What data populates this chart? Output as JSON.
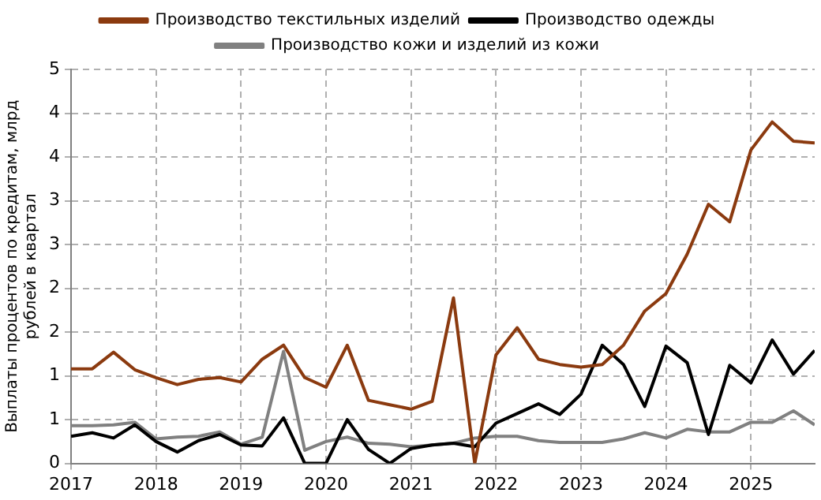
{
  "chart_data": {
    "type": "line",
    "ylabel": "Выплаты процентов по кредитам, млрд рублей в квартал",
    "x": [
      2017,
      2017.25,
      2017.5,
      2017.75,
      2018,
      2018.25,
      2018.5,
      2018.75,
      2019,
      2019.25,
      2019.5,
      2019.75,
      2020,
      2020.25,
      2020.5,
      2020.75,
      2021,
      2021.25,
      2021.5,
      2021.75,
      2022,
      2022.25,
      2022.5,
      2022.75,
      2023,
      2023.25,
      2023.5,
      2023.75,
      2024,
      2024.25,
      2024.5,
      2024.75,
      2025,
      2025.25,
      2025.5,
      2025.75
    ],
    "series": [
      {
        "name": "Производство текстильных изделий",
        "color": "#8b3a0f",
        "values": [
          1.08,
          1.08,
          1.27,
          1.07,
          0.98,
          0.9,
          0.96,
          0.98,
          0.93,
          1.19,
          1.35,
          0.98,
          0.87,
          1.35,
          0.72,
          0.67,
          0.62,
          0.71,
          1.89,
          0,
          1.24,
          1.55,
          1.19,
          1.13,
          1.1,
          1.13,
          1.35,
          1.74,
          1.94,
          2.39,
          2.96,
          2.76,
          3.58,
          3.9,
          3.68,
          3.66
        ]
      },
      {
        "name": "Производство одежды",
        "color": "#000000",
        "values": [
          0.31,
          0.35,
          0.29,
          0.44,
          0.25,
          0.13,
          0.26,
          0.33,
          0.21,
          0.2,
          0.52,
          0,
          0,
          0.5,
          0.16,
          0,
          0.17,
          0.21,
          0.23,
          0.19,
          0.46,
          0.57,
          0.68,
          0.56,
          0.79,
          1.35,
          1.13,
          0.65,
          1.34,
          1.15,
          0.33,
          1.12,
          0.92,
          1.41,
          1.02,
          1.29
        ]
      },
      {
        "name": "Производство кожи и изделий из кожи",
        "color": "#808080",
        "values": [
          0.43,
          0.43,
          0.44,
          0.47,
          0.28,
          0.3,
          0.31,
          0.36,
          0.22,
          0.3,
          1.28,
          0.15,
          0.25,
          0.3,
          0.23,
          0.22,
          0.19,
          0.21,
          0.23,
          0.29,
          0.31,
          0.31,
          0.26,
          0.24,
          0.24,
          0.24,
          0.28,
          0.35,
          0.29,
          0.39,
          0.36,
          0.36,
          0.47,
          0.47,
          0.6,
          0.44
        ]
      }
    ],
    "xlim": [
      2017,
      2025.75
    ],
    "xticks": [
      2017,
      2018,
      2019,
      2020,
      2021,
      2022,
      2023,
      2024,
      2025
    ],
    "ylim": [
      0,
      4.5
    ],
    "yticks": [
      0,
      {
        "value": 0.5,
        "label": "1"
      },
      1,
      {
        "value": 1.5,
        "label": "2"
      },
      2,
      {
        "value": 2.5,
        "label": "3"
      },
      3,
      {
        "value": 3.5,
        "label": "4"
      },
      4,
      {
        "value": 4.5,
        "label": "5"
      }
    ],
    "grid": true,
    "legend": "top",
    "marker": "none",
    "line_style": "solid"
  }
}
